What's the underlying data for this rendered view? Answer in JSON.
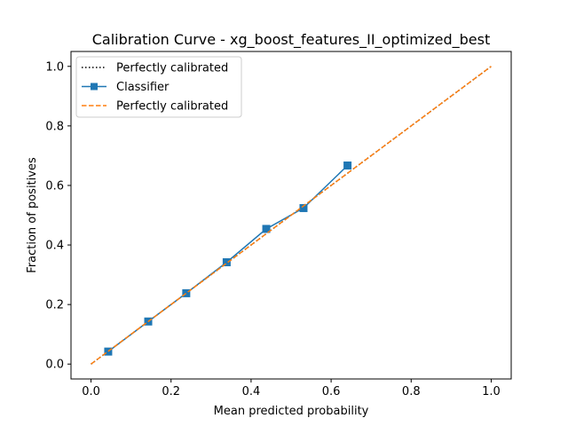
{
  "chart_data": {
    "type": "line",
    "title": "Calibration Curve - xg_boost_features_II_optimized_best",
    "xlabel": "Mean predicted probability",
    "ylabel": "Fraction of positives",
    "xlim": [
      -0.05,
      1.05
    ],
    "ylim": [
      -0.05,
      1.05
    ],
    "xticks": [
      0.0,
      0.2,
      0.4,
      0.6,
      0.8,
      1.0
    ],
    "yticks": [
      0.0,
      0.2,
      0.4,
      0.6,
      0.8,
      1.0
    ],
    "xtick_labels": [
      "0.0",
      "0.2",
      "0.4",
      "0.6",
      "0.8",
      "1.0"
    ],
    "ytick_labels": [
      "0.0",
      "0.2",
      "0.4",
      "0.6",
      "0.8",
      "1.0"
    ],
    "grid": false,
    "legend_position": "upper-left",
    "series": [
      {
        "name": "Perfectly calibrated",
        "style": "dotted",
        "color": "#000000",
        "x": [
          0.0,
          1.0
        ],
        "y": [
          0.0,
          1.0
        ]
      },
      {
        "name": "Classifier",
        "style": "solid-square-markers",
        "color": "#1f77b4",
        "x": [
          0.043,
          0.143,
          0.238,
          0.339,
          0.438,
          0.531,
          0.641
        ],
        "y": [
          0.042,
          0.143,
          0.238,
          0.342,
          0.454,
          0.524,
          0.667
        ]
      },
      {
        "name": "Perfectly calibrated",
        "style": "dashed",
        "color": "#ff7f0e",
        "x": [
          0.0,
          1.0
        ],
        "y": [
          0.0,
          1.0
        ]
      }
    ]
  }
}
